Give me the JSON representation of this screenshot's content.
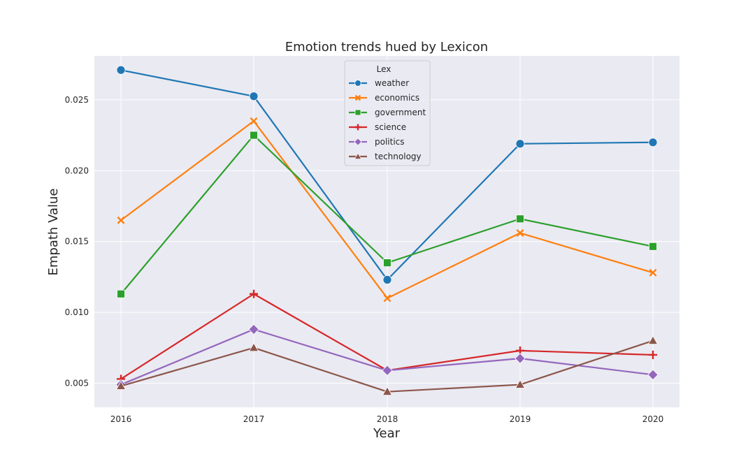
{
  "chart_data": {
    "type": "line",
    "title": "Emotion trends hued by Lexicon",
    "xlabel": "Year",
    "ylabel": "Empath Value",
    "x": [
      "2016",
      "2017",
      "2018",
      "2019",
      "2020"
    ],
    "yticks": [
      "0.005",
      "0.010",
      "0.015",
      "0.020",
      "0.025"
    ],
    "ylim": [
      0.0033,
      0.0281
    ],
    "grid": true,
    "legend_title": "Lex",
    "legend_position": "top-center",
    "series": [
      {
        "name": "weather",
        "color": "#1f77b4",
        "marker": "circle",
        "values": [
          0.0271,
          0.02525,
          0.0123,
          0.0219,
          0.022
        ]
      },
      {
        "name": "economics",
        "color": "#ff7f0e",
        "marker": "x",
        "values": [
          0.0165,
          0.0235,
          0.011,
          0.0156,
          0.0128
        ]
      },
      {
        "name": "government",
        "color": "#2ca02c",
        "marker": "square",
        "values": [
          0.0113,
          0.0225,
          0.0135,
          0.0166,
          0.01465
        ]
      },
      {
        "name": "science",
        "color": "#d62728",
        "marker": "plus",
        "values": [
          0.0053,
          0.0113,
          0.0059,
          0.0073,
          0.007
        ]
      },
      {
        "name": "politics",
        "color": "#9467bd",
        "marker": "diamond",
        "values": [
          0.0049,
          0.0088,
          0.0059,
          0.00675,
          0.0056
        ]
      },
      {
        "name": "technology",
        "color": "#8c564b",
        "marker": "triangle",
        "values": [
          0.0048,
          0.0075,
          0.0044,
          0.0049,
          0.008
        ]
      }
    ]
  }
}
